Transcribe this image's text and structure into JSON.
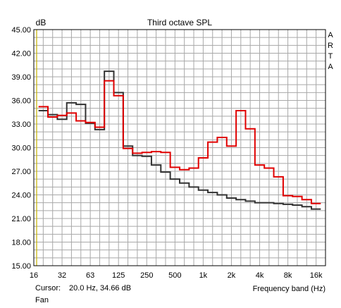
{
  "chart_data": {
    "type": "line",
    "title": "Third octave SPL",
    "ylabel": "dB",
    "xlabel": "Frequency band (Hz)",
    "brand": "ARTA",
    "ylim": [
      15,
      45
    ],
    "yticks": [
      "45.00",
      "42.00",
      "39.00",
      "36.00",
      "33.00",
      "30.00",
      "27.00",
      "24.00",
      "21.00",
      "18.00",
      "15.00"
    ],
    "xticks": [
      {
        "label": "16",
        "band": 0
      },
      {
        "label": "32",
        "band": 3
      },
      {
        "label": "63",
        "band": 6
      },
      {
        "label": "125",
        "band": 9
      },
      {
        "label": "250",
        "band": 12
      },
      {
        "label": "500",
        "band": 15
      },
      {
        "label": "1k",
        "band": 18
      },
      {
        "label": "2k",
        "band": 21
      },
      {
        "label": "4k",
        "band": 24
      },
      {
        "label": "8k",
        "band": 27
      },
      {
        "label": "16k",
        "band": 30
      }
    ],
    "bands": [
      "20",
      "25",
      "31.5",
      "40",
      "50",
      "63",
      "80",
      "100",
      "125",
      "160",
      "200",
      "250",
      "315",
      "400",
      "500",
      "630",
      "800",
      "1k",
      "1.25k",
      "1.6k",
      "2k",
      "2.5k",
      "3.15k",
      "4k",
      "5k",
      "6.3k",
      "8k",
      "10k",
      "12.5k",
      "16k"
    ],
    "grid": true,
    "cursor_band": 0.3,
    "series": [
      {
        "color": "#e00000",
        "values": [
          35.2,
          33.9,
          34.1,
          34.4,
          33.4,
          33.2,
          32.6,
          38.5,
          36.6,
          29.9,
          29.3,
          29.4,
          29.5,
          29.4,
          27.5,
          27.2,
          27.4,
          28.7,
          30.7,
          31.3,
          30.2,
          34.7,
          32.4,
          27.8,
          27.4,
          26.3,
          23.9,
          23.8,
          23.4,
          22.9
        ]
      },
      {
        "color": "#333333",
        "values": [
          34.7,
          34.2,
          33.6,
          35.7,
          35.5,
          33.1,
          32.3,
          39.7,
          37.0,
          30.2,
          29.0,
          28.9,
          27.8,
          26.9,
          26.0,
          25.5,
          25.0,
          24.6,
          24.3,
          24.0,
          23.6,
          23.4,
          23.2,
          23.0,
          23.0,
          22.9,
          22.8,
          22.7,
          22.5,
          22.2
        ]
      }
    ]
  },
  "status": {
    "cursor_label": "Cursor:",
    "cursor_value": "20.0 Hz, 34.66 dB",
    "fan_label": "Fan"
  },
  "colors": {
    "background": "#ffffff",
    "grid": "#a8a8a8",
    "cursor": "#c8b400"
  }
}
